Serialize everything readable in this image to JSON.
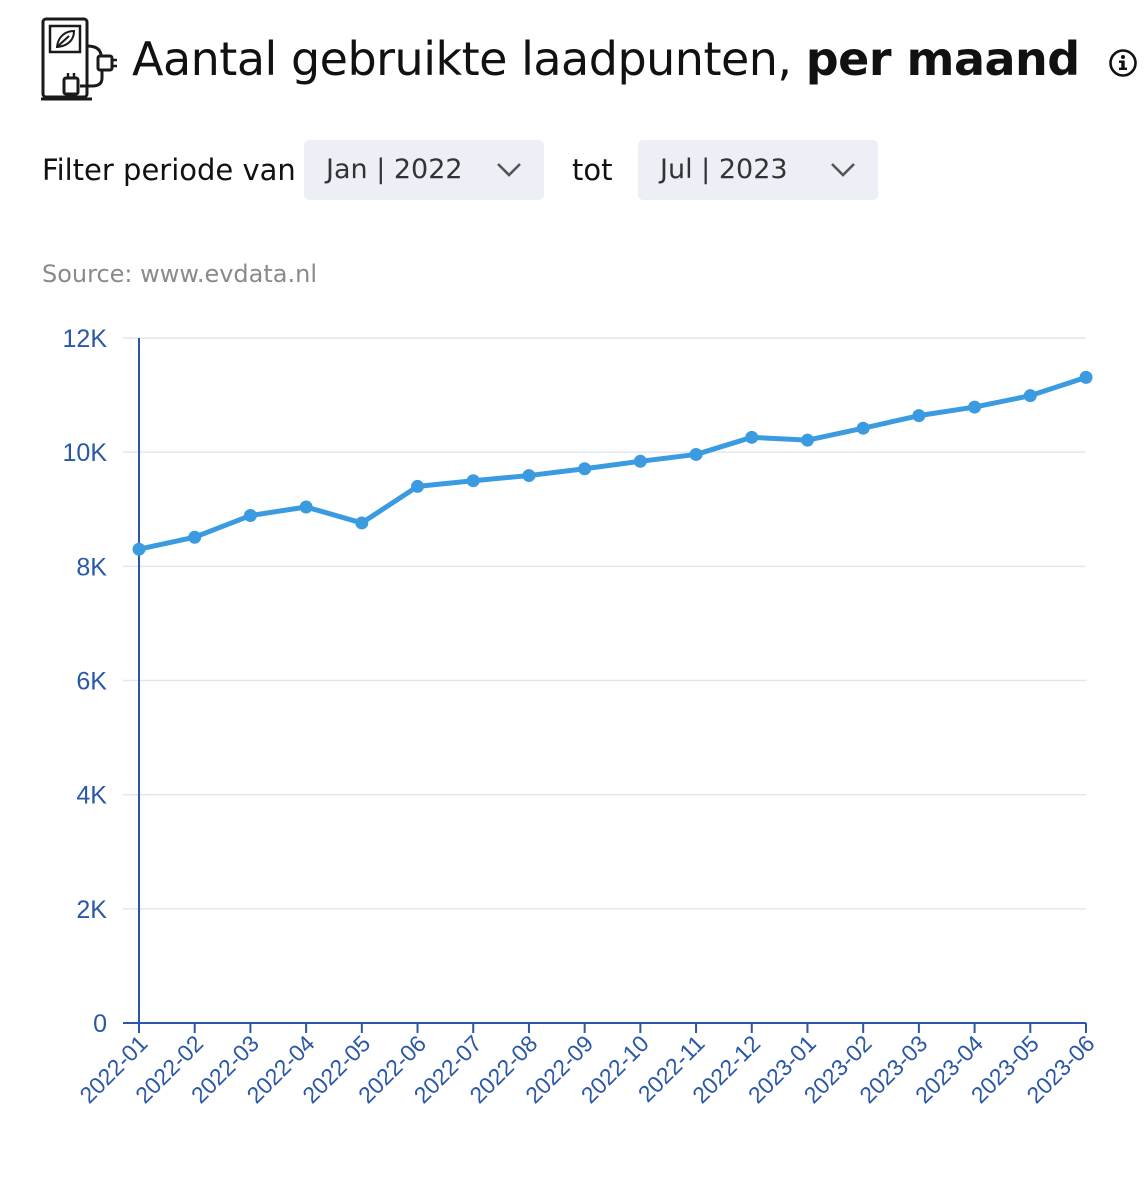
{
  "header": {
    "icon": "ev-charging-station-icon",
    "title_regular": "Aantal gebruikte laadpunten,",
    "title_bold": "per maand",
    "info_icon": "info-icon"
  },
  "filter": {
    "label": "Filter periode van",
    "from_value": "Jan | 2022",
    "to_label": "tot",
    "to_value": "Jul | 2023"
  },
  "source": "Source: www.evdata.nl",
  "chart_data": {
    "type": "line",
    "categories": [
      "2022-01",
      "2022-02",
      "2022-03",
      "2022-04",
      "2022-05",
      "2022-06",
      "2022-07",
      "2022-08",
      "2022-09",
      "2022-10",
      "2022-11",
      "2022-12",
      "2023-01",
      "2023-02",
      "2023-03",
      "2023-04",
      "2023-05",
      "2023-06"
    ],
    "series": [
      {
        "values": [
          8300,
          8510,
          8890,
          9040,
          8760,
          9400,
          9500,
          9590,
          9710,
          9840,
          9960,
          10260,
          10210,
          10420,
          10640,
          10790,
          10990,
          11310
        ],
        "color": "#3b9be0"
      }
    ],
    "ylim": [
      0,
      12000
    ],
    "yticks": [
      0,
      2000,
      4000,
      6000,
      8000,
      10000,
      12000
    ],
    "ytick_labels": [
      "0",
      "2K",
      "4K",
      "6K",
      "8K",
      "10K",
      "12K"
    ],
    "grid": true,
    "axis_color": "#2a57a6",
    "grid_color": "#e3e6f0"
  }
}
